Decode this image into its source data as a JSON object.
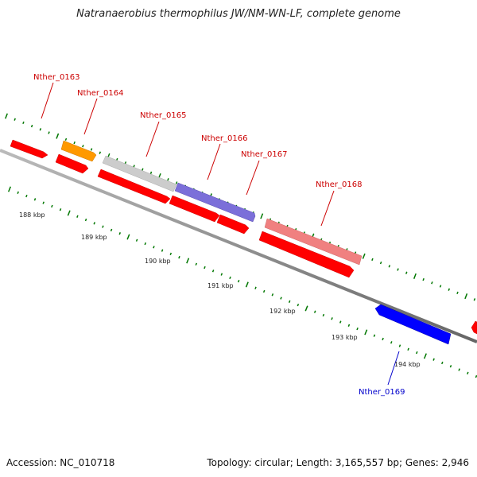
{
  "title": "Natranaerobius thermophilus JW/NM-WN-LF, complete genome",
  "accession": "Accession: NC_010718",
  "summary": "Topology: circular; Length: 3,165,557 bp; Genes: 2,946",
  "scale_labels": [
    "188 kbp",
    "189 kbp",
    "190 kbp",
    "191 kbp",
    "192 kbp",
    "193 kbp",
    "194 kbp"
  ],
  "gene_labels": [
    "Nther_0163",
    "Nther_0164",
    "Nther_0165",
    "Nther_0166",
    "Nther_0167",
    "Nther_0168",
    "Nther_0169"
  ],
  "colors": {
    "red": "#ff0000",
    "orange": "#ff9900",
    "gray": "#cccccc",
    "purple": "#7b6fd9",
    "pink": "#f08080",
    "blue": "#0000ff",
    "label_red": "#cc0000",
    "label_blue": "#0000cc",
    "tick_green": "#007700",
    "backbone": "#888888"
  }
}
